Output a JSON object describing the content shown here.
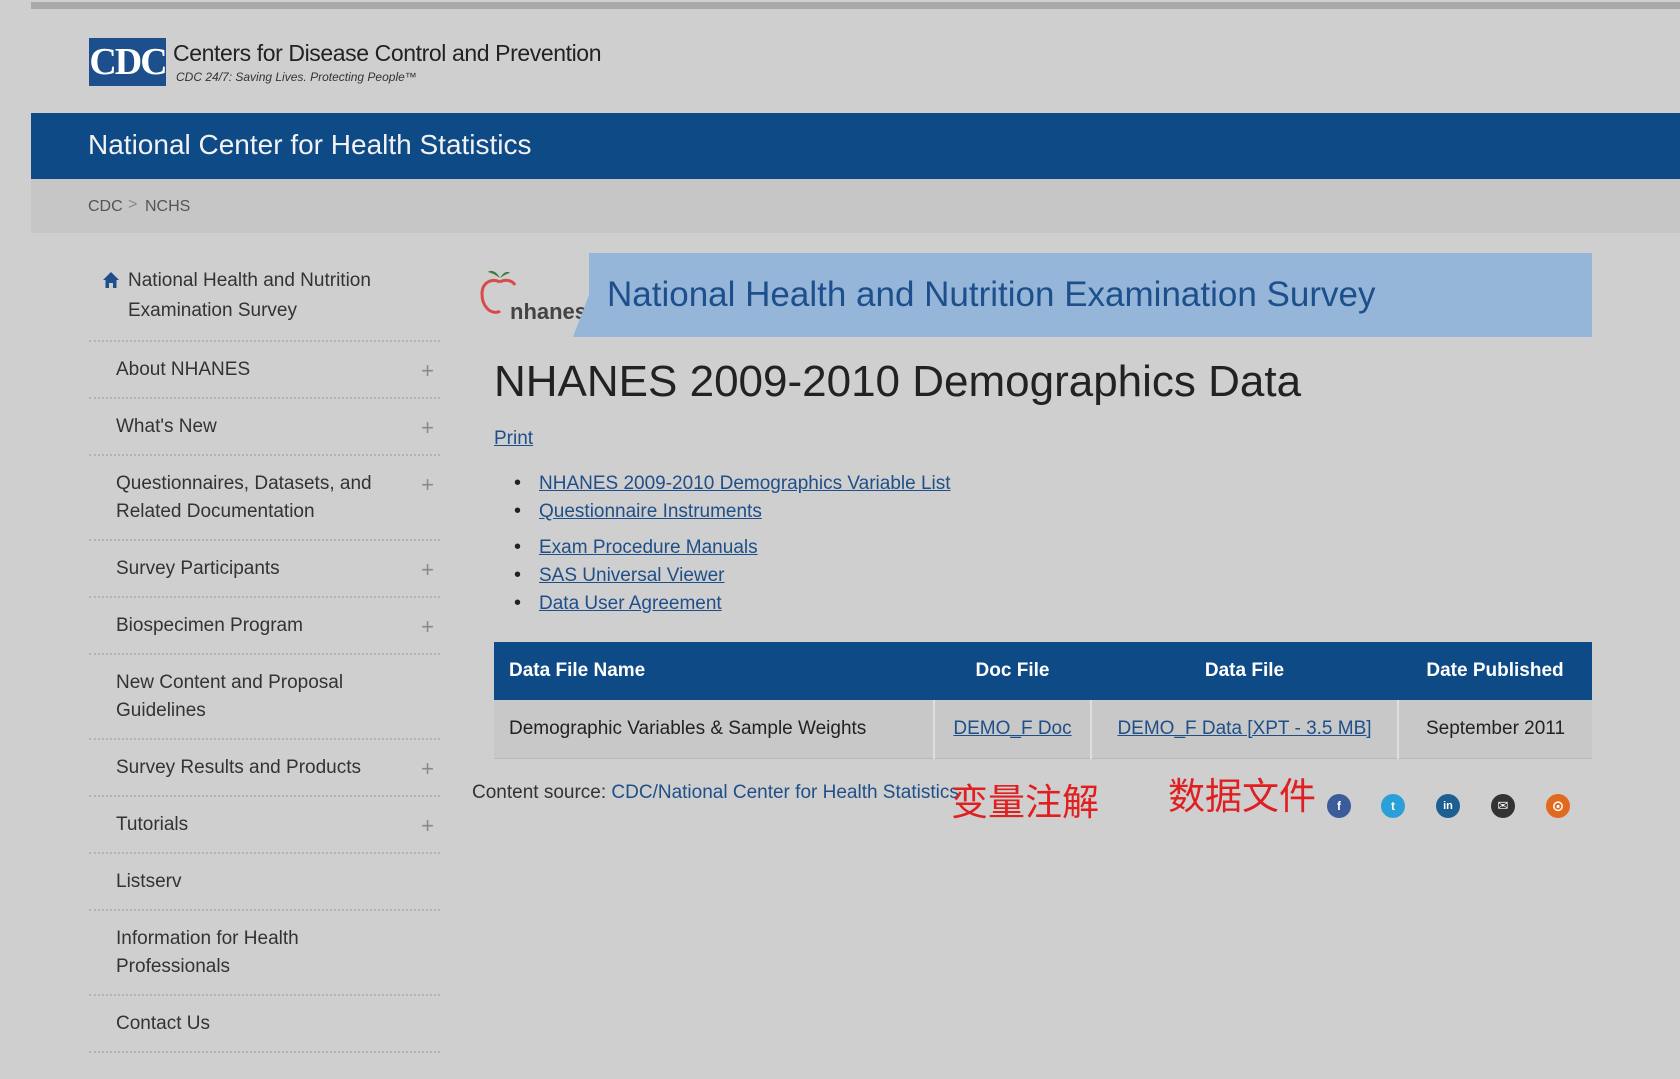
{
  "header": {
    "logo_text": "CDC",
    "agency_name": "Centers for Disease Control and Prevention",
    "tagline": "CDC 24/7: Saving Lives. Protecting People™",
    "center_name": "National Center for Health Statistics"
  },
  "breadcrumb": [
    "CDC",
    "NCHS"
  ],
  "breadcrumb_separator": ">",
  "sidebar": {
    "home_label": "National Health and Nutrition Examination Survey",
    "items": [
      {
        "label": "About NHANES",
        "expand": "+"
      },
      {
        "label": "What's New",
        "expand": "+"
      },
      {
        "label": "Questionnaires, Datasets, and Related Documentation",
        "expand": "+"
      },
      {
        "label": "Survey Participants",
        "expand": "+"
      },
      {
        "label": "Biospecimen Program",
        "expand": "+"
      },
      {
        "label": "New Content and Proposal Guidelines",
        "expand": ""
      },
      {
        "label": "Survey Results and Products",
        "expand": "+"
      },
      {
        "label": "Tutorials",
        "expand": "+"
      },
      {
        "label": "Listserv",
        "expand": ""
      },
      {
        "label": "Information for Health Professionals",
        "expand": ""
      },
      {
        "label": "Contact Us",
        "expand": ""
      }
    ]
  },
  "banner": {
    "logo_text": "nhanes",
    "title": "National Health and Nutrition Examination Survey"
  },
  "main": {
    "title": "NHANES 2009-2010 Demographics Data",
    "print_label": "Print",
    "links": [
      "NHANES 2009-2010 Demographics Variable List",
      "Questionnaire Instruments",
      "Exam Procedure Manuals",
      "SAS Universal Viewer",
      "Data User Agreement"
    ],
    "table": {
      "headers": [
        "Data File Name",
        "Doc File",
        "Data File",
        "Date Published"
      ],
      "rows": [
        [
          "Demographic Variables & Sample Weights",
          "DEMO_F Doc",
          "DEMO_F Data [XPT - 3.5 MB]",
          "September 2011"
        ]
      ]
    },
    "content_source_label": "Content source:",
    "content_source_link": "CDC/National Center for Health Statistics"
  },
  "annotations": {
    "doc_note": "变量注解",
    "data_note": "数据文件",
    "color": "#e02020"
  },
  "social": [
    {
      "name": "facebook-icon",
      "glyph": "f",
      "color": "#3b5b9b"
    },
    {
      "name": "twitter-icon",
      "glyph": "t",
      "color": "#2a9fd8"
    },
    {
      "name": "linkedin-icon",
      "glyph": "in",
      "color": "#1d5f90"
    },
    {
      "name": "email-icon",
      "glyph": "✉",
      "color": "#333333"
    },
    {
      "name": "syndicate-icon",
      "glyph": "⊙",
      "color": "#e06a1e"
    }
  ],
  "colors": {
    "primary_blue": "#0d4a86",
    "banner_blue": "#95b6d8",
    "link_blue": "#1f4f89"
  }
}
